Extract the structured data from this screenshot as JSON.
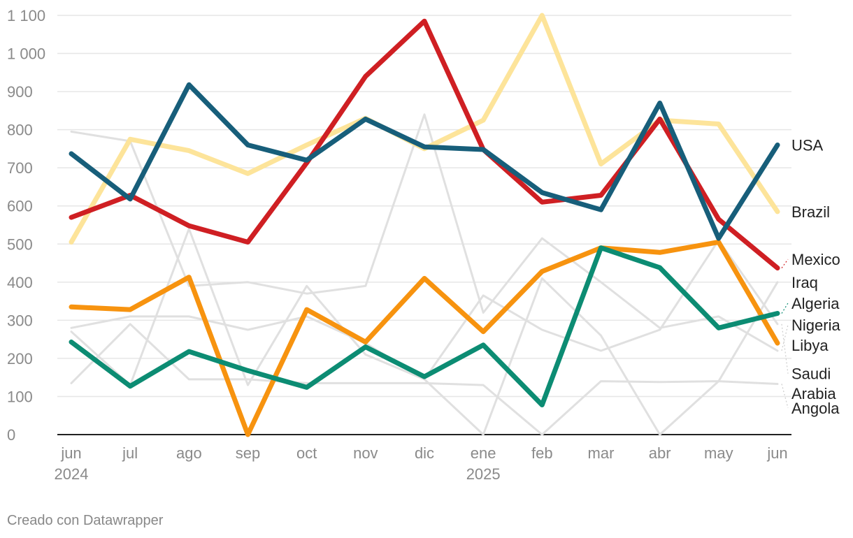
{
  "credit": "Creado con Datawrapper",
  "chart_data": {
    "type": "line",
    "x_categories": [
      "jun",
      "jul",
      "ago",
      "sep",
      "oct",
      "nov",
      "dic",
      "ene",
      "feb",
      "mar",
      "abr",
      "may",
      "jun"
    ],
    "year_labels": [
      {
        "index": 0,
        "label": "2024"
      },
      {
        "index": 7,
        "label": "2025"
      }
    ],
    "y_ticks": [
      {
        "value": 0,
        "label": "0"
      },
      {
        "value": 100,
        "label": "100"
      },
      {
        "value": 200,
        "label": "200"
      },
      {
        "value": 300,
        "label": "300"
      },
      {
        "value": 400,
        "label": "400"
      },
      {
        "value": 500,
        "label": "500"
      },
      {
        "value": 600,
        "label": "600"
      },
      {
        "value": 700,
        "label": "700"
      },
      {
        "value": 800,
        "label": "800"
      },
      {
        "value": 900,
        "label": "900"
      },
      {
        "value": 1000,
        "label": "1 000"
      },
      {
        "value": 1100,
        "label": "1 100"
      }
    ],
    "ylim": [
      0,
      1100
    ],
    "grid": true,
    "legend": "direct labels at right end of lines",
    "background_series_color": "#e0e0e0",
    "series": [
      {
        "name": "Iraq",
        "color": "#e0e0e0",
        "highlight": false,
        "values": [
          270,
          130,
          540,
          130,
          390,
          210,
          145,
          0,
          410,
          260,
          0,
          140,
          400
        ]
      },
      {
        "name": "Nigeria",
        "color": "#e0e0e0",
        "highlight": false,
        "values": [
          795,
          770,
          390,
          400,
          370,
          390,
          840,
          320,
          515,
          400,
          280,
          310,
          220
        ]
      },
      {
        "name": "Saudi Arabia",
        "color": "#e0e0e0",
        "highlight": false,
        "values": [
          280,
          310,
          310,
          275,
          310,
          240,
          145,
          365,
          275,
          220,
          275,
          510,
          290
        ]
      },
      {
        "name": "Angola",
        "color": "#e0e0e0",
        "highlight": false,
        "values": [
          135,
          290,
          145,
          145,
          135,
          135,
          135,
          130,
          0,
          140,
          138,
          140,
          133
        ]
      },
      {
        "name": "Brazil",
        "color": "#fde49a",
        "highlight": true,
        "values": [
          505,
          775,
          745,
          685,
          760,
          830,
          750,
          825,
          1100,
          710,
          825,
          815,
          585
        ]
      },
      {
        "name": "Libya",
        "color": "#f7930f",
        "highlight": true,
        "values": [
          335,
          328,
          413,
          0,
          328,
          243,
          410,
          270,
          428,
          490,
          478,
          505,
          240
        ]
      },
      {
        "name": "Algeria",
        "color": "#0c8c73",
        "highlight": true,
        "values": [
          243,
          127,
          218,
          168,
          124,
          230,
          152,
          235,
          78,
          490,
          438,
          280,
          318
        ]
      },
      {
        "name": "Mexico",
        "color": "#cf1f23",
        "highlight": true,
        "values": [
          570,
          628,
          548,
          505,
          713,
          940,
          1085,
          748,
          610,
          628,
          828,
          565,
          437
        ]
      },
      {
        "name": "USA",
        "color": "#175e7a",
        "highlight": true,
        "values": [
          737,
          618,
          918,
          760,
          720,
          828,
          755,
          748,
          635,
          590,
          870,
          515,
          760
        ]
      }
    ],
    "end_labels": [
      {
        "text": "USA",
        "series": "USA",
        "label_value": 760
      },
      {
        "text": "Brazil",
        "series": "Brazil",
        "label_value": 585
      },
      {
        "text": "Mexico",
        "series": "Mexico",
        "label_value": 460
      },
      {
        "text": "Iraq",
        "series": "Iraq",
        "label_value": 400
      },
      {
        "text": "Algeria",
        "series": "Algeria",
        "label_value": 345
      },
      {
        "text": "Nigeria",
        "series": "Nigeria",
        "label_value": 288
      },
      {
        "text": "Libya",
        "series": "Libya",
        "label_value": 235
      },
      {
        "text": "Saudi",
        "series": "Saudi Arabia",
        "label_value": 160
      },
      {
        "text": "Arabia",
        "series": "Saudi Arabia",
        "label_value": 108
      },
      {
        "text": "Angola",
        "series": "Angola",
        "label_value": 70
      }
    ]
  }
}
